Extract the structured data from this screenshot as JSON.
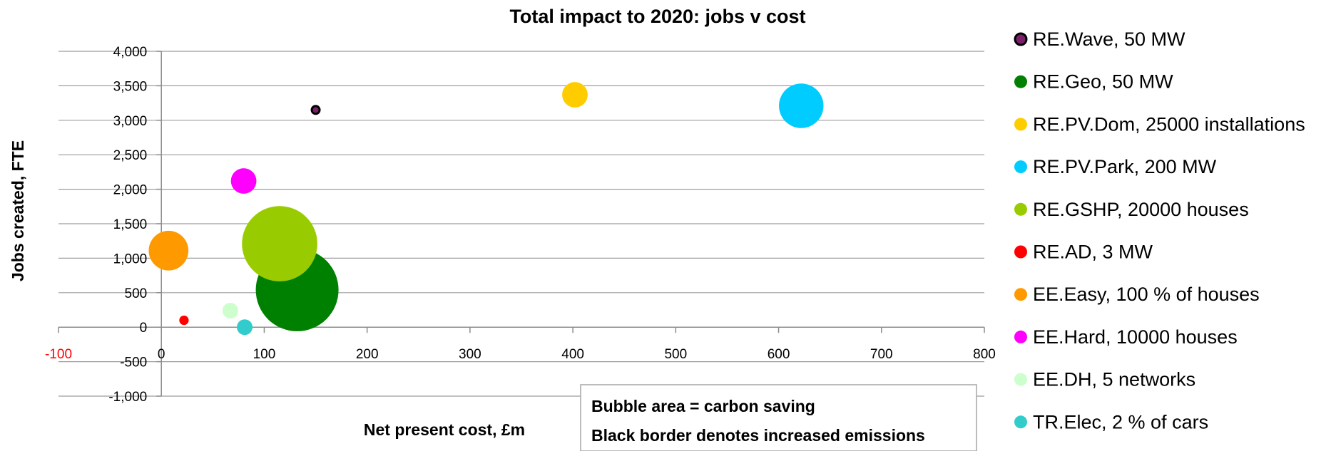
{
  "chart_data": {
    "type": "bubble",
    "title": "Total impact to 2020: jobs v cost",
    "xlabel": "Net present cost, £m",
    "ylabel": "Jobs created, FTE",
    "xlim": [
      -100,
      800
    ],
    "ylim": [
      -1000,
      4000
    ],
    "x_ticks": [
      -100,
      0,
      100,
      200,
      300,
      400,
      500,
      600,
      700,
      800
    ],
    "x_tick_labels": [
      "-100",
      "0",
      "100",
      "200",
      "300",
      "400",
      "500",
      "600",
      "700",
      "800"
    ],
    "y_ticks": [
      -1000,
      -500,
      0,
      500,
      1000,
      1500,
      2000,
      2500,
      3000,
      3500,
      4000
    ],
    "y_tick_labels": [
      "-1,000",
      "-500",
      "0",
      "500",
      "1,000",
      "1,500",
      "2,000",
      "2,500",
      "3,000",
      "3,500",
      "4,000"
    ],
    "negative_label_color": "#ff0000",
    "grid": true,
    "legend_position": "right",
    "note_lines": [
      "Bubble area = carbon saving",
      "Black border denotes increased emissions"
    ],
    "series": [
      {
        "name": "RE.Wave, 50 MW",
        "x": 150,
        "y": 3150,
        "size": 0.4,
        "color": "#7b1f6a",
        "increased_emissions": true
      },
      {
        "name": "RE.Geo, 50 MW",
        "x": 132,
        "y": 540,
        "size": 100,
        "color": "#008000",
        "increased_emissions": false
      },
      {
        "name": "RE.PV.Dom, 25000 installations",
        "x": 402,
        "y": 3370,
        "size": 9.5,
        "color": "#ffcc00",
        "increased_emissions": false
      },
      {
        "name": "RE.PV.Park, 200 MW",
        "x": 622,
        "y": 3210,
        "size": 29,
        "color": "#00ccff",
        "increased_emissions": false
      },
      {
        "name": "RE.GSHP, 20000 houses",
        "x": 115,
        "y": 1210,
        "size": 83,
        "color": "#99cc00",
        "increased_emissions": false
      },
      {
        "name": "RE.AD, 3 MW",
        "x": 22,
        "y": 100,
        "size": 1.3,
        "color": "#ff0000",
        "increased_emissions": false
      },
      {
        "name": "EE.Easy, 100 % of houses",
        "x": 7,
        "y": 1110,
        "size": 23,
        "color": "#ff9900",
        "increased_emissions": false
      },
      {
        "name": "EE.Hard, 10000 houses",
        "x": 80,
        "y": 2120,
        "size": 9.5,
        "color": "#ff00ff",
        "increased_emissions": false
      },
      {
        "name": "EE.DH, 5 networks",
        "x": 67,
        "y": 240,
        "size": 3.6,
        "color": "#ccffcc",
        "increased_emissions": false
      },
      {
        "name": "TR.Elec, 2 % of cars",
        "x": 81,
        "y": 0,
        "size": 3.6,
        "color": "#33cccc",
        "increased_emissions": false
      }
    ]
  }
}
